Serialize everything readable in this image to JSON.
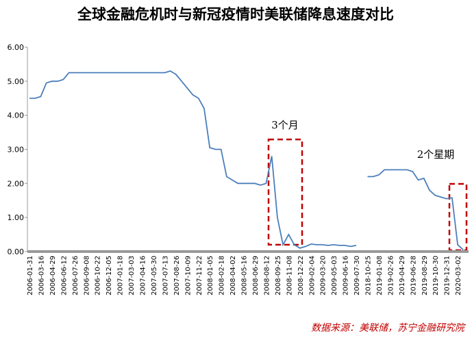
{
  "chart_data": {
    "type": "line",
    "title": "全球金融危机时与新冠疫情时美联储降息速度对比",
    "categories": [
      "2006-01-31",
      null,
      "2006-03-16",
      null,
      "2006-04-29",
      null,
      "2006-06-12",
      null,
      "2006-07-26",
      null,
      "2006-09-08",
      null,
      "2006-10-22",
      null,
      "2006-12-05",
      null,
      "2007-01-18",
      null,
      "2007-03-03",
      null,
      "2007-04-16",
      null,
      "2007-05-30",
      null,
      "2007-07-13",
      null,
      "2007-08-26",
      null,
      "2007-10-09",
      null,
      "2007-11-22",
      null,
      "2008-01-05",
      null,
      "2008-02-18",
      null,
      "2008-04-02",
      null,
      "2008-05-16",
      null,
      "2008-06-29",
      null,
      "2008-08-12",
      null,
      "2008-09-25",
      null,
      "2008-11-08",
      null,
      "2008-12-22",
      null,
      "2009-02-04",
      null,
      "2009-03-20",
      null,
      "2009-05-03",
      null,
      "2009-06-16",
      null,
      "2009-07-30",
      null,
      "2018-10-25",
      null,
      "2019-01-08",
      null,
      "2019-02-26",
      null,
      "2019-04-29",
      null,
      "2019-06-28",
      null,
      "2019-08-29",
      null,
      "2019-10-30",
      null,
      "2019-12-31",
      null,
      "2020-03-02",
      null
    ],
    "series": [
      {
        "name": null,
        "color": "#4a7ebb",
        "values": [
          4.5,
          4.5,
          4.55,
          4.95,
          5.0,
          5.0,
          5.05,
          5.25,
          5.25,
          5.25,
          5.25,
          5.25,
          5.25,
          5.25,
          5.25,
          5.25,
          5.25,
          5.25,
          5.25,
          5.25,
          5.25,
          5.25,
          5.25,
          5.25,
          5.25,
          5.3,
          5.2,
          5.0,
          4.8,
          4.6,
          4.5,
          4.2,
          3.05,
          3.0,
          3.0,
          2.2,
          2.1,
          2.0,
          2.0,
          2.0,
          2.0,
          1.95,
          2.0,
          2.8,
          1.0,
          0.2,
          0.5,
          0.2,
          0.1,
          0.15,
          0.22,
          0.2,
          0.2,
          0.18,
          0.2,
          0.18,
          0.18,
          0.15,
          0.18,
          null,
          2.2,
          2.2,
          2.25,
          2.4,
          2.4,
          2.4,
          2.4,
          2.4,
          2.35,
          2.1,
          2.15,
          1.8,
          1.65,
          1.6,
          1.55,
          1.58,
          0.2,
          0.05
        ]
      }
    ],
    "ylim": [
      0,
      6
    ],
    "yticks": [
      {
        "value": 0,
        "label": "0.00"
      },
      {
        "value": 1,
        "label": "1.00"
      },
      {
        "value": 2,
        "label": "2.00"
      },
      {
        "value": 3,
        "label": "3.00"
      },
      {
        "value": 4,
        "label": "4.00"
      },
      {
        "value": 5,
        "label": "5.00"
      },
      {
        "value": 6,
        "label": "6.00"
      }
    ],
    "annotations": [
      "3个月",
      "2个星期"
    ],
    "source": "数据来源：美联储，苏宁金融研究院"
  }
}
